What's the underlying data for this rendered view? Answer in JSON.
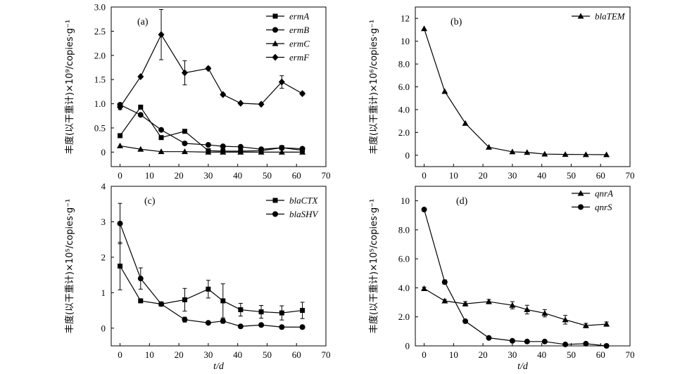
{
  "chart_data": [
    {
      "id": "a",
      "type": "line",
      "panel_label": "(a)",
      "ylabel": "丰度(以干重计)×10⁹/copies·g⁻¹",
      "xlabel": "",
      "xlim": [
        -3,
        70
      ],
      "ylim": [
        -0.3,
        3.0
      ],
      "xticks": [
        0,
        10,
        20,
        30,
        40,
        50,
        60,
        70
      ],
      "yticks": [
        0,
        0.5,
        1.0,
        1.5,
        2.0,
        2.5,
        3.0
      ],
      "ytick_labels": [
        "0",
        "0.5",
        "1.0",
        "1.5",
        "2.0",
        "2.5",
        "3.0"
      ],
      "legend_position": "top-right",
      "series": [
        {
          "name": "ermA",
          "marker": "square",
          "points": [
            [
              0,
              0.34
            ],
            [
              7,
              0.93
            ],
            [
              14,
              0.3
            ],
            [
              22,
              0.43
            ],
            [
              30,
              0.03
            ],
            [
              35,
              0.02
            ],
            [
              41,
              0.02
            ],
            [
              48,
              0.03
            ],
            [
              55,
              0.09
            ],
            [
              62,
              0.04
            ]
          ]
        },
        {
          "name": "ermB",
          "marker": "circle",
          "points": [
            [
              0,
              0.98
            ],
            [
              7,
              0.77
            ],
            [
              14,
              0.46
            ],
            [
              22,
              0.18
            ],
            [
              30,
              0.15
            ],
            [
              35,
              0.12
            ],
            [
              41,
              0.11
            ],
            [
              48,
              0.06
            ],
            [
              55,
              0.09
            ],
            [
              62,
              0.07
            ]
          ]
        },
        {
          "name": "ermC",
          "marker": "triangle",
          "points": [
            [
              0,
              0.13
            ],
            [
              7,
              0.06
            ],
            [
              14,
              0.01
            ],
            [
              22,
              0.01
            ],
            [
              30,
              0.0
            ],
            [
              35,
              0.0
            ],
            [
              41,
              0.0
            ],
            [
              48,
              0.0
            ],
            [
              55,
              0.0
            ],
            [
              62,
              0.0
            ]
          ]
        },
        {
          "name": "ermF",
          "marker": "diamond",
          "points": [
            [
              0,
              0.93
            ],
            [
              7,
              1.56
            ],
            [
              14,
              2.43
            ],
            [
              22,
              1.64
            ],
            [
              30,
              1.73
            ],
            [
              35,
              1.19
            ],
            [
              41,
              1.01
            ],
            [
              48,
              0.99
            ],
            [
              55,
              1.45
            ],
            [
              62,
              1.21
            ]
          ],
          "errors": [
            0.05,
            0.02,
            0.52,
            0.25,
            0.03,
            0.03,
            0.02,
            0.02,
            0.13,
            0.03
          ]
        }
      ]
    },
    {
      "id": "b",
      "type": "line",
      "panel_label": "(b)",
      "ylabel": "丰度(以干重计)×10⁶/copies·g⁻¹",
      "xlabel": "",
      "xlim": [
        -3,
        70
      ],
      "ylim": [
        -1,
        13
      ],
      "xticks": [
        0,
        10,
        20,
        30,
        40,
        50,
        60,
        70
      ],
      "yticks": [
        0,
        2,
        4,
        6,
        8,
        10,
        12
      ],
      "ytick_labels": [
        "0",
        "2.0",
        "4.0",
        "6.0",
        "8.0",
        "10",
        "12"
      ],
      "legend_position": "top-right",
      "series": [
        {
          "name": "blaTEM",
          "marker": "triangle",
          "points": [
            [
              0,
              11.1
            ],
            [
              7,
              5.6
            ],
            [
              14,
              2.8
            ],
            [
              22,
              0.7
            ],
            [
              30,
              0.3
            ],
            [
              35,
              0.25
            ],
            [
              41,
              0.1
            ],
            [
              48,
              0.07
            ],
            [
              55,
              0.06
            ],
            [
              62,
              0.05
            ]
          ]
        }
      ]
    },
    {
      "id": "c",
      "type": "line",
      "panel_label": "(c)",
      "ylabel": "丰度(以干重计)×10⁵/copies·g⁻¹",
      "xlabel": "t/d",
      "xlim": [
        -3,
        70
      ],
      "ylim": [
        -0.5,
        4
      ],
      "xticks": [
        0,
        10,
        20,
        30,
        40,
        50,
        60,
        70
      ],
      "yticks": [
        0,
        1,
        2,
        3,
        4
      ],
      "ytick_labels": [
        "0",
        "1",
        "2",
        "3",
        "4"
      ],
      "legend_position": "top-right",
      "series": [
        {
          "name": "blaCTX",
          "marker": "square",
          "points": [
            [
              0,
              1.75
            ],
            [
              7,
              0.77
            ],
            [
              14,
              0.68
            ],
            [
              22,
              0.8
            ],
            [
              30,
              1.1
            ],
            [
              35,
              0.77
            ],
            [
              41,
              0.52
            ],
            [
              48,
              0.46
            ],
            [
              55,
              0.43
            ],
            [
              62,
              0.5
            ]
          ],
          "errors": [
            0.67,
            0.02,
            0.02,
            0.32,
            0.25,
            0.48,
            0.18,
            0.18,
            0.2,
            0.23
          ]
        },
        {
          "name": "blaSHV",
          "marker": "circle",
          "points": [
            [
              0,
              2.95
            ],
            [
              7,
              1.4
            ],
            [
              14,
              0.68
            ],
            [
              22,
              0.24
            ],
            [
              30,
              0.15
            ],
            [
              35,
              0.2
            ],
            [
              41,
              0.05
            ],
            [
              48,
              0.09
            ],
            [
              55,
              0.03
            ],
            [
              62,
              0.03
            ]
          ],
          "errors": [
            0.57,
            0.3,
            0.03,
            0.07,
            0.03,
            0.06,
            0.02,
            0.02,
            0.01,
            0.01
          ]
        }
      ]
    },
    {
      "id": "d",
      "type": "line",
      "panel_label": "(d)",
      "ylabel": "丰度(以干重计)×10⁵/copies·g⁻¹",
      "xlabel": "t/d",
      "xlim": [
        -3,
        70
      ],
      "ylim": [
        0,
        11
      ],
      "xticks": [
        0,
        10,
        20,
        30,
        40,
        50,
        60,
        70
      ],
      "yticks": [
        0,
        2,
        4,
        6,
        8,
        10
      ],
      "ytick_labels": [
        "0",
        "2.0",
        "4.0",
        "6.0",
        "8.0",
        "10"
      ],
      "legend_position": "top-right",
      "series": [
        {
          "name": "qnrA",
          "marker": "triangle",
          "points": [
            [
              0,
              3.95
            ],
            [
              7,
              3.1
            ],
            [
              14,
              2.9
            ],
            [
              22,
              3.05
            ],
            [
              30,
              2.8
            ],
            [
              35,
              2.5
            ],
            [
              41,
              2.25
            ],
            [
              48,
              1.8
            ],
            [
              55,
              1.4
            ],
            [
              62,
              1.5
            ]
          ],
          "errors": [
            0.1,
            0.1,
            0.15,
            0.15,
            0.25,
            0.3,
            0.25,
            0.3,
            0.15,
            0.15
          ]
        },
        {
          "name": "qnrS",
          "marker": "circle",
          "points": [
            [
              0,
              9.4
            ],
            [
              7,
              4.4
            ],
            [
              14,
              1.7
            ],
            [
              22,
              0.55
            ],
            [
              30,
              0.35
            ],
            [
              35,
              0.3
            ],
            [
              41,
              0.3
            ],
            [
              48,
              0.1
            ],
            [
              55,
              0.15
            ],
            [
              62,
              0.0
            ]
          ],
          "errors": [
            0.1,
            0.15,
            0.05,
            0.05,
            0.05,
            0.05,
            0.05,
            0.05,
            0.05,
            0.05
          ]
        }
      ]
    }
  ]
}
